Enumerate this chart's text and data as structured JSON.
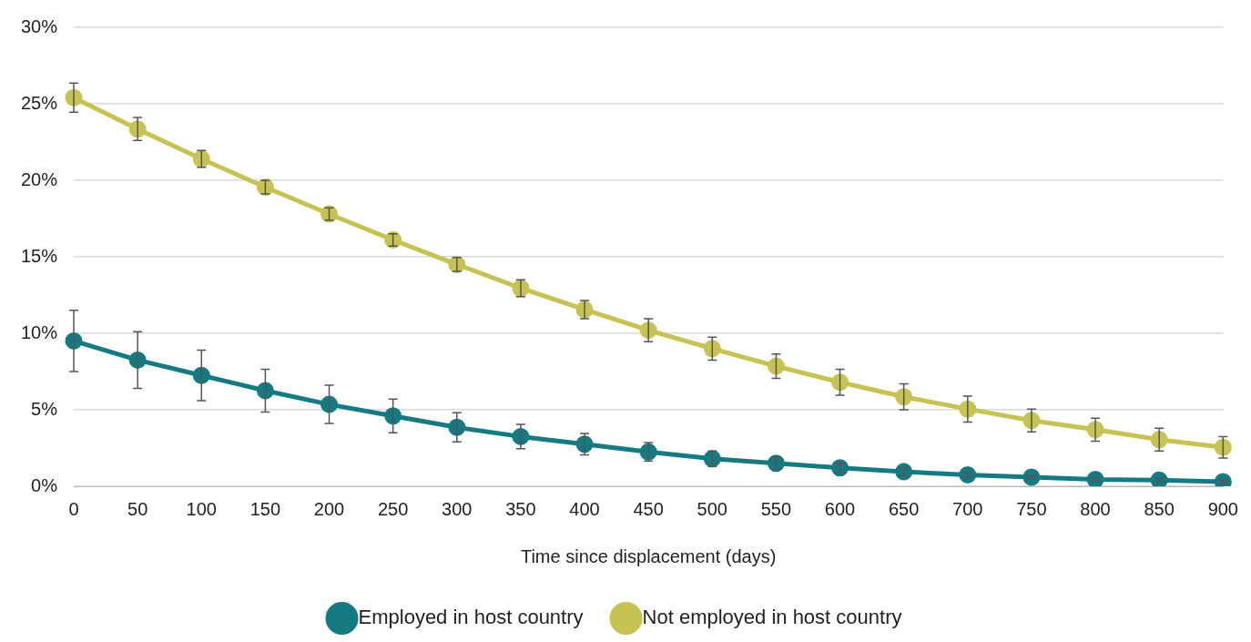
{
  "chart_data": {
    "type": "line",
    "xlabel": "Time since displacement (days)",
    "categories": [
      "0",
      "50",
      "100",
      "150",
      "200",
      "250",
      "300",
      "350",
      "400",
      "450",
      "500",
      "550",
      "600",
      "650",
      "700",
      "750",
      "800",
      "850",
      "900"
    ],
    "series": [
      {
        "name": "Employed in host country",
        "color": "#157a82",
        "values": [
          9.5,
          8.25,
          7.25,
          6.25,
          5.35,
          4.6,
          3.85,
          3.25,
          2.75,
          2.25,
          1.8,
          1.5,
          1.2,
          0.95,
          0.75,
          0.6,
          0.45,
          0.4,
          0.3
        ],
        "errors": [
          2.0,
          1.85,
          1.65,
          1.4,
          1.25,
          1.1,
          0.95,
          0.8,
          0.7,
          0.6,
          0.5,
          0.4,
          0.3,
          0.25,
          0.15,
          0.1,
          0.1,
          0.1,
          0.1
        ]
      },
      {
        "name": "Not employed in host country",
        "color": "#c6c352",
        "values": [
          25.4,
          23.35,
          21.4,
          19.55,
          17.8,
          16.1,
          14.5,
          12.95,
          11.55,
          10.2,
          9.0,
          7.85,
          6.8,
          5.85,
          5.05,
          4.3,
          3.7,
          3.05,
          2.55
        ],
        "errors": [
          0.95,
          0.75,
          0.55,
          0.45,
          0.4,
          0.4,
          0.45,
          0.55,
          0.6,
          0.75,
          0.75,
          0.8,
          0.85,
          0.85,
          0.85,
          0.75,
          0.75,
          0.75,
          0.7
        ]
      }
    ],
    "ylim": [
      0,
      30
    ],
    "yticks": [
      {
        "value": 0,
        "label": "0%"
      },
      {
        "value": 5,
        "label": "5%"
      },
      {
        "value": 10,
        "label": "10%"
      },
      {
        "value": 15,
        "label": "15%"
      },
      {
        "value": 20,
        "label": "20%"
      },
      {
        "value": 25,
        "label": "25%"
      },
      {
        "value": 30,
        "label": "30%"
      }
    ],
    "grid": "y",
    "legend": "bottom",
    "marker": "circle"
  }
}
